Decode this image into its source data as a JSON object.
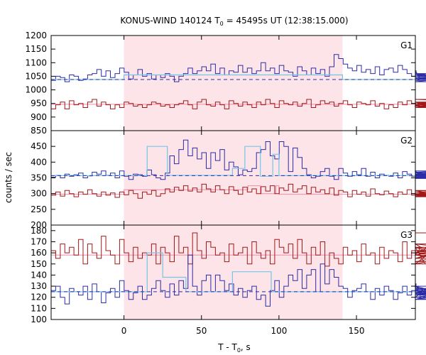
{
  "chart_data": {
    "type": "line",
    "title": "KONUS-WIND 140124 T",
    "title_sub": "0",
    "title_rest": " = 45495s UT (12:38:15.000)",
    "xlabel": "T - T",
    "xlabel_sub": "0",
    "xlabel_rest": ", s",
    "ylabel": "counts / sec",
    "xlim": [
      -47,
      188
    ],
    "xticks": [
      0,
      50,
      100,
      150
    ],
    "xtick_labels": [
      "0",
      "50",
      "100",
      "150"
    ],
    "highlight_region": [
      0,
      141
    ],
    "highlight_color": "#fde4e8",
    "colors": {
      "blue": "#2c2ca8",
      "red": "#a01818",
      "cyan": "#73c6e6",
      "pink": "#f08aa8"
    },
    "panels": [
      {
        "name": "G1",
        "ylim": [
          850,
          1200
        ],
        "yticks": [
          850,
          900,
          950,
          1000,
          1050,
          1100,
          1150,
          1200
        ],
        "ytick_labels": [
          "850",
          "900",
          "950",
          "1000",
          "1050",
          "1100",
          "1150",
          "1200"
        ],
        "blue_background": 1038,
        "red_background": 947,
        "blue_model": [
          [
            -47,
            1038
          ],
          [
            0,
            1038
          ],
          [
            0,
            1055
          ],
          [
            141,
            1055
          ],
          [
            141,
            1038
          ],
          [
            188,
            1038
          ]
        ],
        "red_model": [
          [
            -47,
            947
          ],
          [
            188,
            947
          ]
        ],
        "bin_width": 2.944,
        "x_start": -47,
        "blue_counts": [
          1035,
          1050,
          1045,
          1030,
          1055,
          1050,
          1035,
          1040,
          1055,
          1060,
          1075,
          1050,
          1070,
          1045,
          1060,
          1080,
          1065,
          1040,
          1055,
          1075,
          1050,
          1060,
          1040,
          1055,
          1045,
          1060,
          1050,
          1030,
          1050,
          1060,
          1080,
          1060,
          1070,
          1085,
          1070,
          1095,
          1060,
          1080,
          1055,
          1070,
          1065,
          1090,
          1065,
          1080,
          1060,
          1070,
          1100,
          1070,
          1080,
          1060,
          1090,
          1070,
          1065,
          1050,
          1085,
          1070,
          1055,
          1080,
          1060,
          1075,
          1050,
          1085,
          1130,
          1115,
          1095,
          1080,
          1070,
          1090,
          1065,
          1075,
          1060,
          1085,
          1055,
          1075,
          1080,
          1065,
          1090,
          1075,
          1060,
          1050,
          1070,
          1040,
          1060,
          1045,
          1035,
          1055,
          1040,
          1050,
          1060,
          1045,
          1030,
          1050,
          1040,
          1045,
          1035,
          1045,
          1040,
          1040,
          1035,
          1030
        ],
        "red_counts": [
          930,
          945,
          955,
          930,
          960,
          945,
          950,
          935,
          955,
          965,
          940,
          955,
          945,
          930,
          945,
          935,
          955,
          950,
          940,
          945,
          935,
          945,
          955,
          950,
          940,
          945,
          935,
          945,
          950,
          960,
          945,
          930,
          955,
          965,
          945,
          940,
          955,
          945,
          930,
          960,
          950,
          940,
          955,
          945,
          935,
          955,
          945,
          965,
          950,
          935,
          960,
          950,
          945,
          955,
          940,
          950,
          965,
          935,
          945,
          960,
          950,
          955,
          940,
          950,
          960,
          945,
          935,
          955,
          950,
          945,
          960,
          940,
          950,
          930,
          945,
          935,
          955,
          945,
          960,
          950,
          940,
          955,
          945,
          935,
          950,
          945,
          955,
          940,
          950,
          945,
          955,
          935,
          945,
          950,
          940,
          955,
          935,
          965,
          955,
          945
        ]
      },
      {
        "name": "G2",
        "ylim": [
          200,
          500
        ],
        "yticks": [
          200,
          250,
          300,
          350,
          400,
          450
        ],
        "ytick_labels": [
          "200",
          "250",
          "300",
          "350",
          "400",
          "450"
        ],
        "blue_background": 357,
        "red_background": 298,
        "blue_model": [
          [
            -47,
            357
          ],
          [
            15,
            357
          ],
          [
            15,
            450
          ],
          [
            28,
            450
          ],
          [
            28,
            358
          ],
          [
            65,
            358
          ],
          [
            65,
            358
          ],
          [
            70,
            358
          ],
          [
            70,
            380
          ],
          [
            78,
            380
          ],
          [
            78,
            450
          ],
          [
            88,
            450
          ],
          [
            88,
            355
          ],
          [
            96,
            355
          ],
          [
            96,
            425
          ],
          [
            100,
            425
          ],
          [
            100,
            357
          ],
          [
            188,
            357
          ]
        ],
        "red_model": [
          [
            -47,
            298
          ],
          [
            0,
            298
          ],
          [
            0,
            312
          ],
          [
            80,
            312
          ],
          [
            80,
            325
          ],
          [
            88,
            325
          ],
          [
            88,
            300
          ],
          [
            98,
            300
          ],
          [
            98,
            325
          ],
          [
            100,
            325
          ],
          [
            100,
            298
          ],
          [
            188,
            298
          ]
        ],
        "bin_width": 2.944,
        "x_start": -47,
        "blue_counts": [
          352,
          358,
          350,
          362,
          355,
          360,
          365,
          350,
          356,
          368,
          362,
          372,
          358,
          365,
          350,
          372,
          355,
          345,
          362,
          360,
          355,
          375,
          360,
          350,
          345,
          365,
          420,
          395,
          440,
          470,
          420,
          445,
          410,
          430,
          380,
          430,
          405,
          440,
          375,
          400,
          385,
          360,
          375,
          370,
          380,
          430,
          440,
          465,
          420,
          410,
          465,
          450,
          370,
          445,
          415,
          380,
          360,
          350,
          355,
          370,
          380,
          355,
          345,
          380,
          365,
          355,
          370,
          360,
          380,
          355,
          368,
          350,
          362,
          358,
          355,
          365,
          350,
          370,
          362,
          355,
          372,
          352,
          360,
          368,
          350,
          362,
          356,
          365,
          358,
          352,
          360,
          368,
          348,
          356,
          362,
          350,
          372,
          360,
          355,
          352
        ],
        "red_counts": [
          295,
          305,
          292,
          310,
          300,
          290,
          305,
          298,
          312,
          300,
          292,
          305,
          295,
          302,
          288,
          305,
          296,
          310,
          300,
          285,
          305,
          298,
          310,
          292,
          300,
          315,
          305,
          320,
          310,
          325,
          308,
          318,
          305,
          330,
          315,
          305,
          325,
          312,
          300,
          322,
          310,
          298,
          320,
          305,
          315,
          300,
          322,
          308,
          325,
          300,
          318,
          310,
          330,
          305,
          315,
          325,
          300,
          320,
          305,
          312,
          300,
          318,
          295,
          310,
          305,
          290,
          310,
          298,
          305,
          292,
          315,
          300,
          296,
          308,
          300,
          290,
          305,
          298,
          312,
          295,
          300,
          290,
          305,
          298,
          310,
          295,
          300,
          292,
          305,
          298,
          290,
          305,
          300,
          295,
          310,
          300,
          292,
          300,
          305,
          300
        ]
      },
      {
        "name": "G3",
        "ylim": [
          100,
          185
        ],
        "yticks": [
          100,
          110,
          120,
          130,
          140,
          150,
          160,
          170,
          180
        ],
        "ytick_labels": [
          "100",
          "110",
          "120",
          "130",
          "140",
          "150",
          "160",
          "170",
          "180"
        ],
        "blue_background": 125,
        "red_background": 158,
        "blue_model": [
          [
            -47,
            125
          ],
          [
            15,
            125
          ],
          [
            15,
            160
          ],
          [
            25,
            160
          ],
          [
            25,
            138
          ],
          [
            40,
            138
          ],
          [
            40,
            125
          ],
          [
            70,
            125
          ],
          [
            70,
            143
          ],
          [
            95,
            143
          ],
          [
            95,
            125
          ],
          [
            188,
            125
          ]
        ],
        "red_model": [
          [
            -47,
            158
          ],
          [
            188,
            158
          ]
        ],
        "bin_width": 2.944,
        "x_start": -47,
        "blue_counts": [
          126,
          130,
          120,
          114,
          128,
          125,
          122,
          130,
          118,
          132,
          125,
          115,
          124,
          128,
          120,
          135,
          126,
          118,
          124,
          130,
          118,
          122,
          128,
          135,
          126,
          120,
          132,
          122,
          135,
          128,
          158,
          130,
          122,
          135,
          140,
          125,
          140,
          135,
          126,
          132,
          122,
          128,
          120,
          126,
          130,
          118,
          122,
          112,
          126,
          135,
          120,
          130,
          140,
          135,
          145,
          128,
          140,
          145,
          125,
          150,
          132,
          145,
          138,
          130,
          128,
          120,
          126,
          128,
          132,
          125,
          118,
          128,
          122,
          130,
          126,
          118,
          124,
          130,
          122,
          126,
          132,
          120,
          127,
          123,
          130,
          118,
          126,
          122,
          128,
          124,
          130,
          118,
          126,
          120,
          128,
          124,
          118,
          122,
          128,
          125
        ],
        "red_counts": [
          162,
          155,
          168,
          160,
          165,
          158,
          172,
          150,
          168,
          160,
          155,
          175,
          162,
          158,
          150,
          172,
          160,
          152,
          165,
          155,
          160,
          158,
          168,
          150,
          165,
          160,
          152,
          175,
          160,
          165,
          150,
          178,
          162,
          155,
          170,
          165,
          158,
          160,
          152,
          168,
          158,
          160,
          165,
          150,
          170,
          160,
          155,
          162,
          150,
          172,
          165,
          160,
          168,
          155,
          172,
          160,
          150,
          165,
          158,
          170,
          148,
          160,
          155,
          150,
          165,
          158,
          162,
          152,
          168,
          158,
          160,
          150,
          165,
          155,
          162,
          160,
          152,
          170,
          155,
          162,
          158,
          165,
          150,
          160,
          168,
          155,
          162,
          158,
          165,
          152,
          160,
          155,
          165,
          158,
          150,
          162,
          155,
          168,
          160,
          178
        ]
      }
    ]
  }
}
